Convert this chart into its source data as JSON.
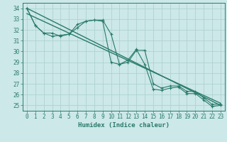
{
  "title": "",
  "xlabel": "Humidex (Indice chaleur)",
  "xlim": [
    -0.5,
    23.5
  ],
  "ylim": [
    24.5,
    34.5
  ],
  "yticks": [
    25,
    26,
    27,
    28,
    29,
    30,
    31,
    32,
    33,
    34
  ],
  "xticks": [
    0,
    1,
    2,
    3,
    4,
    5,
    6,
    7,
    8,
    9,
    10,
    11,
    12,
    13,
    14,
    15,
    16,
    17,
    18,
    19,
    20,
    21,
    22,
    23
  ],
  "background_color": "#cce8e8",
  "grid_color": "#aacece",
  "line_color": "#2a7a6a",
  "series1": {
    "x": [
      0,
      1,
      2,
      3,
      4,
      5,
      6,
      7,
      8,
      9,
      10,
      11,
      12,
      13,
      14,
      15,
      16,
      17,
      18,
      19,
      20,
      21,
      22,
      23
    ],
    "y": [
      34,
      32.4,
      31.7,
      31.7,
      31.4,
      31.6,
      32.5,
      32.8,
      32.9,
      32.9,
      31.6,
      28.8,
      29.0,
      30.1,
      30.1,
      27.0,
      26.6,
      26.8,
      26.8,
      26.3,
      26.3,
      25.7,
      25.1,
      25.1
    ]
  },
  "series2": {
    "x": [
      0,
      1,
      2,
      3,
      4,
      5,
      6,
      7,
      8,
      9,
      10,
      11,
      12,
      13,
      14,
      15,
      16,
      17,
      18,
      19,
      20,
      21,
      22,
      23
    ],
    "y": [
      34,
      32.4,
      31.7,
      31.4,
      31.5,
      31.6,
      32.2,
      32.8,
      32.9,
      32.8,
      29.0,
      28.8,
      29.2,
      30.2,
      28.8,
      26.5,
      26.4,
      26.6,
      26.7,
      26.1,
      26.1,
      25.5,
      24.9,
      25.0
    ]
  },
  "trend_line": {
    "x": [
      0,
      23
    ],
    "y": [
      34.0,
      25.0
    ]
  },
  "trend_line2": {
    "x": [
      0,
      23
    ],
    "y": [
      33.5,
      25.2
    ]
  },
  "tick_fontsize": 5.5,
  "xlabel_fontsize": 6.5
}
